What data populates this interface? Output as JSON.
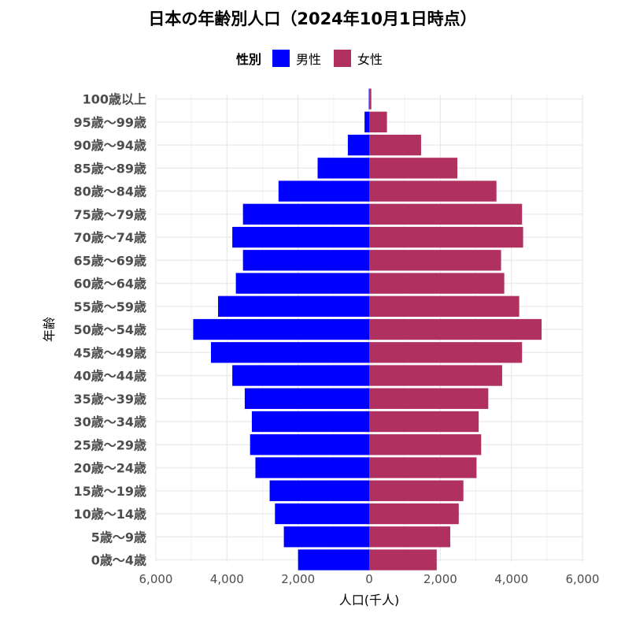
{
  "chart_data": {
    "type": "bar",
    "orientation": "horizontal",
    "title": "日本の年齢別人口（2024年10月1日時点）",
    "xlabel": "人口(千人)",
    "ylabel": "年齢",
    "xlim": [
      -6000,
      6000
    ],
    "xticks": [
      -6000,
      -4000,
      -2000,
      0,
      2000,
      4000,
      6000
    ],
    "xtick_labels": [
      "6,000",
      "4,000",
      "2,000",
      "0",
      "2,000",
      "4,000",
      "6,000"
    ],
    "grid": true,
    "legend": {
      "title": "性別",
      "position": "top"
    },
    "categories": [
      "0歳～4歳",
      "5歳～9歳",
      "10歳～14歳",
      "15歳～19歳",
      "20歳～24歳",
      "25歳～29歳",
      "30歳～34歳",
      "35歳～39歳",
      "40歳～44歳",
      "45歳～49歳",
      "50歳～54歳",
      "55歳～59歳",
      "60歳～64歳",
      "65歳～69歳",
      "70歳～74歳",
      "75歳～79歳",
      "80歳～84歳",
      "85歳～89歳",
      "90歳～94歳",
      "95歳～99歳",
      "100歳以上"
    ],
    "series": [
      {
        "name": "男性",
        "color": "#0000ff",
        "side": "left",
        "values": [
          2000,
          2400,
          2650,
          2800,
          3200,
          3350,
          3300,
          3500,
          3850,
          4450,
          4950,
          4250,
          3750,
          3550,
          3850,
          3550,
          2550,
          1450,
          600,
          130,
          10
        ]
      },
      {
        "name": "女性",
        "color": "#b03060",
        "side": "right",
        "values": [
          1900,
          2280,
          2520,
          2650,
          3020,
          3150,
          3080,
          3350,
          3740,
          4300,
          4850,
          4220,
          3800,
          3710,
          4330,
          4300,
          3580,
          2480,
          1460,
          500,
          60
        ]
      }
    ]
  }
}
